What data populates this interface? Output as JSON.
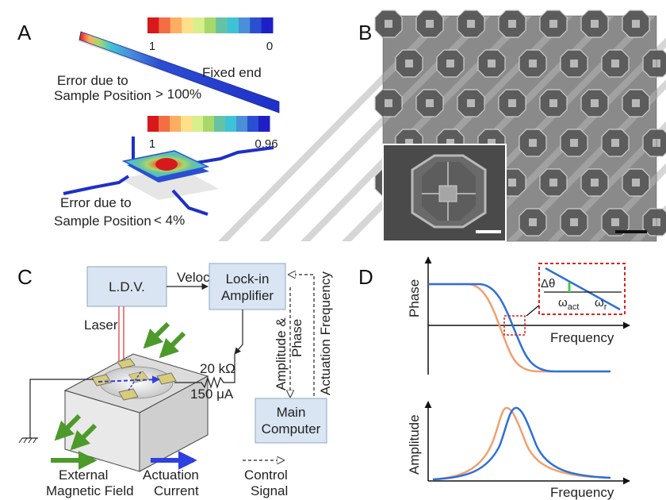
{
  "panels": {
    "a": {
      "letter": "A",
      "beam_scale": {
        "max_label": "1",
        "min_label": "0"
      },
      "pad_scale": {
        "max_label": "1",
        "min_label": "0.96"
      },
      "fixed_end_label": "Fixed end",
      "beam_error": {
        "line1": "Error due to",
        "line2": "Sample Position",
        "value": "> 100%"
      },
      "pad_error": {
        "line1": "Error due to",
        "line2": "Sample Position",
        "value": "< 4%"
      },
      "colormap": [
        "#d7191c",
        "#f46d43",
        "#fdae61",
        "#fee08b",
        "#d9ef8b",
        "#a6d96a",
        "#66c2a5",
        "#3ec3d6",
        "#4a90d9",
        "#2b4fd1",
        "#1f1fc8"
      ]
    },
    "b": {
      "letter": "B"
    },
    "c": {
      "letter": "C",
      "ldv_label": "L.D.V.",
      "velocity_label": "Velocity",
      "lockin_line1": "Lock-in",
      "lockin_line2": "Amplifier",
      "laser_label": "Laser",
      "resistor_label": "20 kΩ",
      "current_label": "150 μA",
      "amp_phase_line1": "Amplitude &",
      "amp_phase_line2": "Phase",
      "actuation_freq_label": "Actuation Frequency",
      "computer_line1": "Main",
      "computer_line2": "Computer",
      "legend": [
        {
          "line1": "External",
          "line2": "Magnetic Field",
          "color": "#4c9a2a"
        },
        {
          "line1": "Actuation",
          "line2": "Current",
          "color": "#2f3fe0"
        },
        {
          "line1": "Control",
          "line2": "Signal",
          "color": "#222222"
        }
      ]
    },
    "d": {
      "letter": "D",
      "phase_axis": "Phase",
      "amplitude_axis": "Amplitude",
      "frequency_axis": "Frequency",
      "inset_delta": "Δθ",
      "inset_omega_act": "ω",
      "inset_act_sub": "act",
      "inset_omega_r": "ω",
      "inset_r_sub": "r",
      "colors": {
        "blue": "#2e6fd8",
        "orange": "#f0a070"
      }
    }
  }
}
